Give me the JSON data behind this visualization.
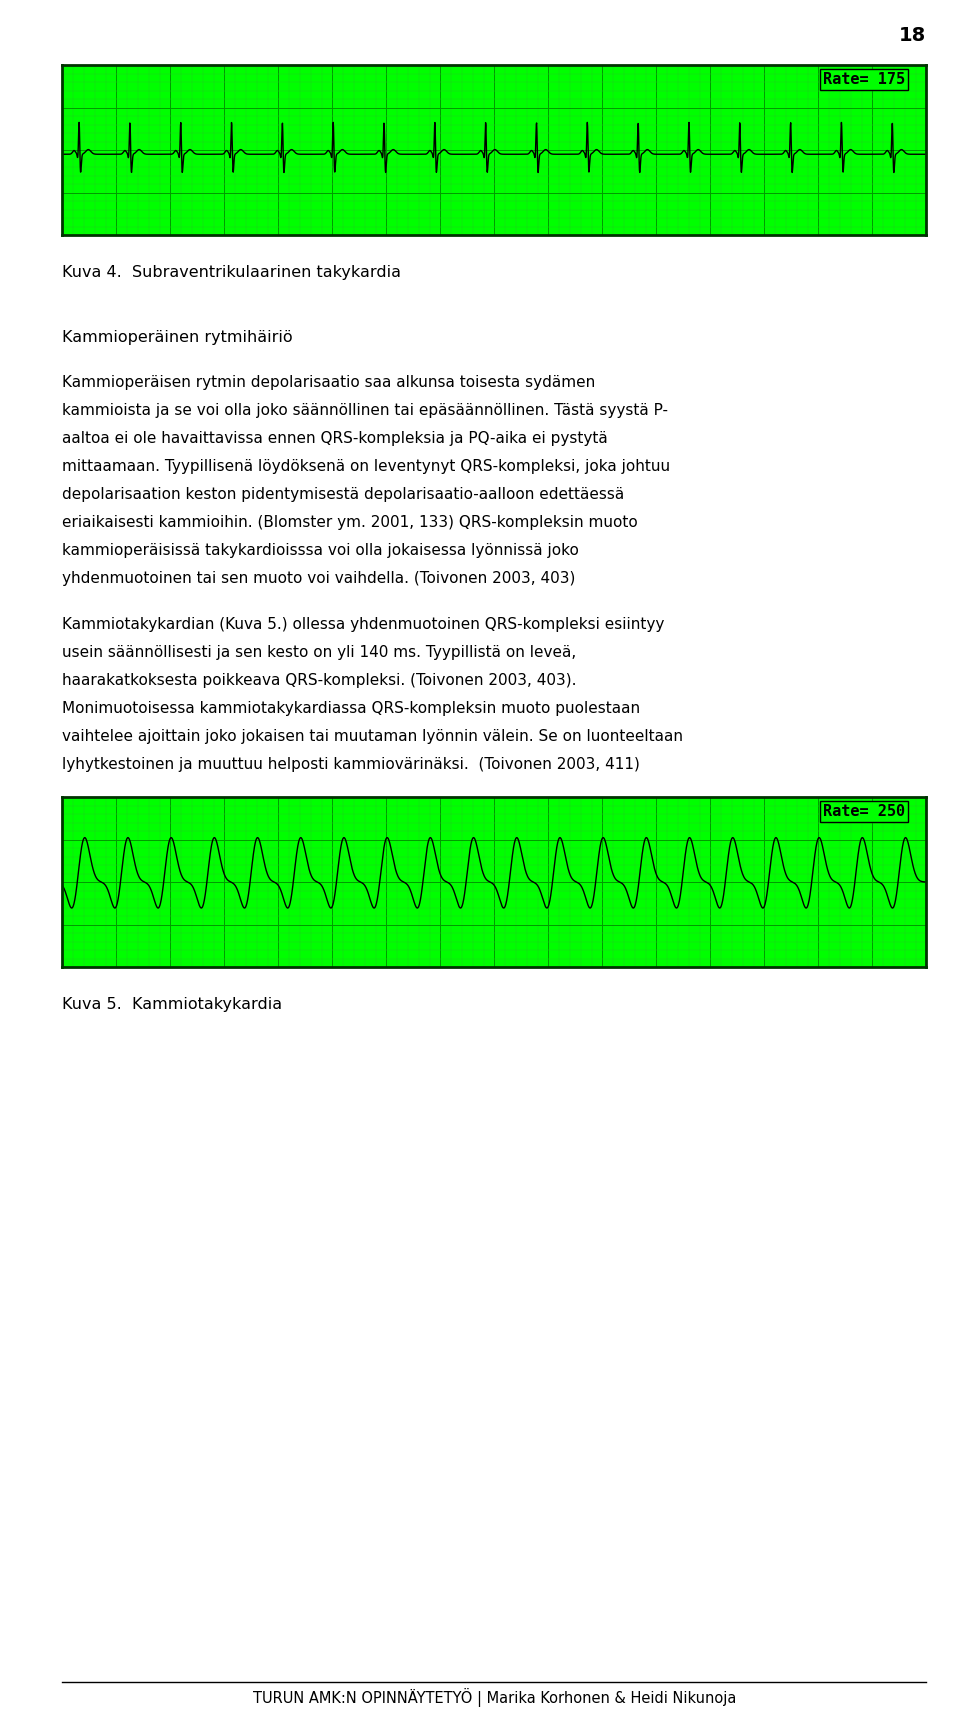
{
  "page_number": "18",
  "ecg1_rate_label": "Rate= 175",
  "ecg2_rate_label": "Rate= 250",
  "ecg1_rate": 175,
  "ecg2_rate": 250,
  "grid_bg_color": "#00FF00",
  "grid_minor_color": "#22CC22",
  "grid_major_color": "#009900",
  "ecg_line_color": "#000000",
  "border_color": "#003300",
  "title1": "Kuva 4.  Subraventrikulaarinen takykardia",
  "heading1": "Kammioperäinen rytmihäiriö",
  "para1_line1": "Kammioperäisen rytmin depolarisaatio saa alkunsa toisesta sydämen",
  "para1_line2": "kammioista ja se voi olla joko säännöllinen tai epäsäännöllinen. Tästä syystä P-",
  "para1_line3": "aaltoa ei ole havaittavissa ennen QRS-kompleksia ja PQ-aika ei pystytä",
  "para1_line4": "mittaamaan. Tyypillisenä löydöksenä on leventynyt QRS-kompleksi, joka johtuu",
  "para1_line5": "depolarisaation keston pidentymisestä depolarisaatio-aalloon edettäessä",
  "para1_line6": "eriaikaisesti kammioihin. (Blomster ym. 2001, 133) QRS-kompleksin muoto",
  "para1_line7": "kammioperäisissä takykardioisssa voi olla jokaisessa lyönnissä joko",
  "para1_line8": "yhdenmuotoinen tai sen muoto voi vaihdella. (Toivonen 2003, 403)",
  "para2_line1": "Kammiotakykardian (Kuva 5.) ollessa yhdenmuotoinen QRS-kompleksi esiintyy",
  "para2_line2": "usein säännöllisesti ja sen kesto on yli 140 ms. Tyypillistä on leveä,",
  "para2_line3": "haarakatkoksesta poikkeava QRS-kompleksi. (Toivonen 2003, 403).",
  "para2_line4": "Monimuotoisessa kammiotakykardiassa QRS-kompleksin muoto puolestaan",
  "para2_line5": "vaihtelee ajoittain joko jokaisen tai muutaman lyönnin välein. Se on luonteeltaan",
  "para2_line6": "lyhytkestoinen ja muuttuu helposti kammiovärinäksi.  (Toivonen 2003, 411)",
  "title2": "Kuva 5.  Kammiotakykardia",
  "footer": "TURUN AMK:N OPINNÄYTETYÖ | Marika Korhonen & Heidi Nikunoja",
  "text_color": "#000000",
  "bg_color": "#ffffff",
  "title_fontsize": 11.5,
  "heading_fontsize": 11.5,
  "body_fontsize": 11.0,
  "footer_fontsize": 10.5,
  "page_num_fontsize": 14
}
